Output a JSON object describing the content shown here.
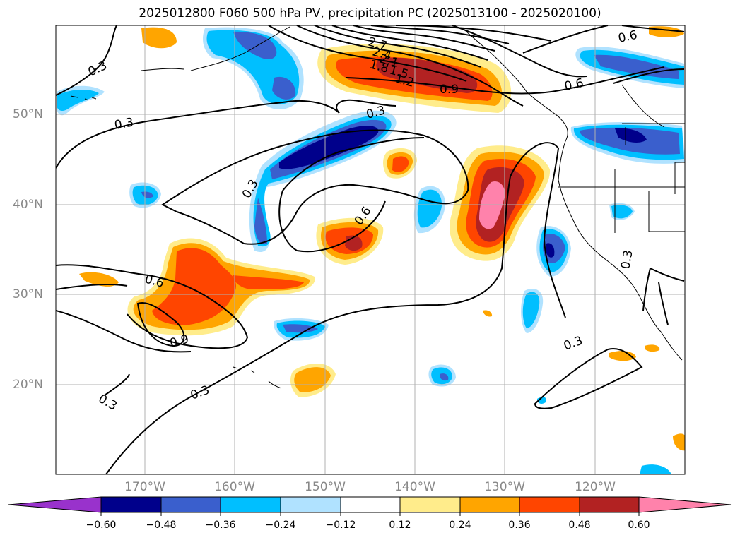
{
  "title": "2025012800 F060 500 hPa PV, precipitation PC (2025013100 - 2025020100)",
  "lat_labels": [
    "50°N",
    "40°N",
    "30°N",
    "20°N"
  ],
  "lon_labels": [
    "170°W",
    "160°W",
    "150°W",
    "140°W",
    "130°W",
    "120°W"
  ],
  "contour_labels": [
    "0.3",
    "0.3",
    "0.3",
    "0.3",
    "0.3",
    "0.3",
    "0.3",
    "0.3",
    "0.6",
    "0.6",
    "0.6",
    "0.6",
    "0.9",
    "0.9",
    "1.2",
    "1.5",
    "1.8",
    "2.1",
    "2.4",
    "2.7"
  ],
  "colorbar": {
    "ticks": [
      "−0.60",
      "−0.48",
      "−0.36",
      "−0.24",
      "−0.12",
      "0.12",
      "0.24",
      "0.36",
      "0.48",
      "0.60"
    ],
    "colors": [
      "#9932cc",
      "#00008b",
      "#3a5fcd",
      "#00bfff",
      "#b0e2ff",
      "#ffffff",
      "#ffec8b",
      "#ffa500",
      "#ff4500",
      "#b22222",
      "#ff82ab"
    ]
  }
}
